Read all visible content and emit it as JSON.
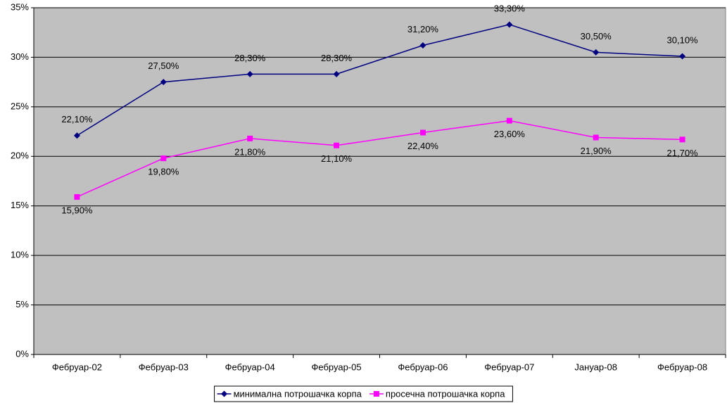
{
  "chart_data": {
    "type": "line",
    "categories": [
      "Фебруар-02",
      "Фебруар-03",
      "Фебруар-04",
      "Фебруар-05",
      "Фебруар-06",
      "Фебруар-07",
      "Јануар-08",
      "Фебруар-08"
    ],
    "series": [
      {
        "name": "минимална потрошачка корпа",
        "color": "#000080",
        "marker": "diamond",
        "values": [
          22.1,
          27.5,
          28.3,
          28.3,
          31.2,
          33.3,
          30.5,
          30.1
        ],
        "value_labels": [
          "22,10%",
          "27,50%",
          "28,30%",
          "28,30%",
          "31,20%",
          "33,30%",
          "30,50%",
          "30,10%"
        ]
      },
      {
        "name": "просечна потрошачка корпа",
        "color": "#ff00ff",
        "marker": "square",
        "values": [
          15.9,
          19.8,
          21.8,
          21.1,
          22.4,
          23.6,
          21.9,
          21.7
        ],
        "value_labels": [
          "15,90%",
          "19,80%",
          "21,80%",
          "21,10%",
          "22,40%",
          "23,60%",
          "21,90%",
          "21,70%"
        ]
      }
    ],
    "ylim": [
      0,
      35
    ],
    "yticks": [
      {
        "value": 0,
        "label": "0%"
      },
      {
        "value": 5,
        "label": "5%"
      },
      {
        "value": 10,
        "label": "10%"
      },
      {
        "value": 15,
        "label": "15%"
      },
      {
        "value": 20,
        "label": "20%"
      },
      {
        "value": 25,
        "label": "25%"
      },
      {
        "value": 30,
        "label": "30%"
      },
      {
        "value": 35,
        "label": "35%"
      }
    ],
    "grid": true,
    "plot_background": "#c0c0c0",
    "legend": "bottom"
  }
}
